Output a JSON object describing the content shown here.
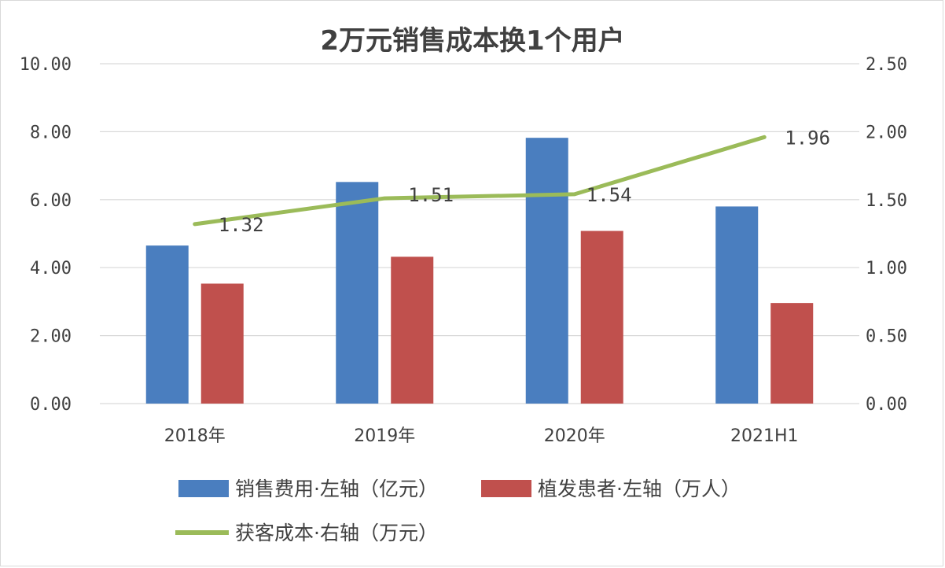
{
  "chart_data": {
    "type": "bar",
    "title": "2万元销售成本换1个用户",
    "categories": [
      "2018年",
      "2019年",
      "2020年",
      "2021H1"
    ],
    "y_left": {
      "range": [
        0,
        10
      ],
      "ticks": [
        "0.00",
        "2.00",
        "4.00",
        "6.00",
        "8.00",
        "10.00"
      ]
    },
    "y_right": {
      "range": [
        0,
        2.5
      ],
      "ticks": [
        "0.00",
        "0.50",
        "1.00",
        "1.50",
        "2.00",
        "2.50"
      ]
    },
    "grid": true,
    "legend_position": "bottom",
    "series": [
      {
        "name": "销售费用·左轴（亿元）",
        "type": "bar",
        "axis": "left",
        "color": "#4a7ebf",
        "values": [
          4.65,
          6.52,
          7.82,
          5.8
        ]
      },
      {
        "name": "植发患者·左轴（万人）",
        "type": "bar",
        "axis": "left",
        "color": "#c0504d",
        "values": [
          3.53,
          4.32,
          5.08,
          2.96
        ]
      },
      {
        "name": "获客成本·右轴（万元）",
        "type": "line",
        "axis": "right",
        "color": "#9bbb59",
        "values": [
          1.32,
          1.51,
          1.54,
          1.96
        ],
        "labels": [
          "1.32",
          "1.51",
          "1.54",
          "1.96"
        ]
      }
    ]
  }
}
